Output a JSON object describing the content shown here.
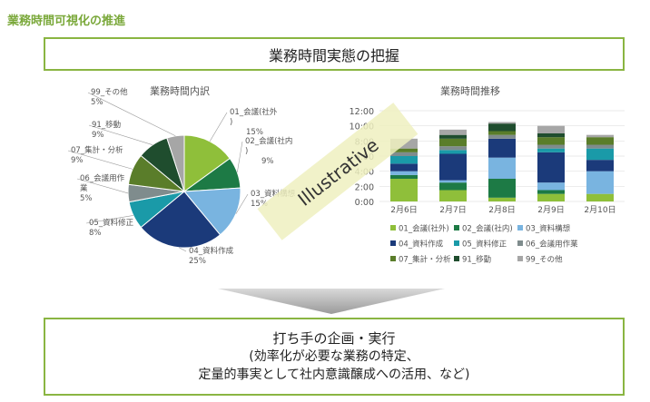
{
  "page_title": "業務時間可視化の推進",
  "top_box": "業務時間実態の把握",
  "watermark": "Illustrative",
  "bottom_box": {
    "line1": "打ち手の企画・実行",
    "line2": "(効率化が必要な業務の特定、",
    "line3": "定量的事実として社内意識醸成への活用、など)"
  },
  "colors": {
    "c1": "#8fbf3a",
    "c2": "#1d7a45",
    "c3": "#79b4e0",
    "c4": "#1b3a7a",
    "c5": "#1a9aa8",
    "c6": "#7f8c8d",
    "c7": "#5a7d2a",
    "c8": "#1f4d2e",
    "c9": "#a6a6a6"
  },
  "chart_data": [
    {
      "type": "pie",
      "title": "業務時間内訳",
      "categories": [
        "01_会議(社外)",
        "02_会議(社内)",
        "03_資料構想",
        "04_資料作成",
        "05_資料修正",
        "06_会議用作業",
        "07_集計・分析",
        "91_移動",
        "99_その他"
      ],
      "values": [
        15,
        9,
        15,
        25,
        8,
        5,
        9,
        9,
        5
      ],
      "labels": [
        [
          "01_会議(社外",
          ")",
          "15%"
        ],
        [
          "02_会議(社内",
          ")",
          "9%"
        ],
        [
          "03_資料構想",
          "15%"
        ],
        [
          "04_資料作成",
          "25%"
        ],
        [
          "05_資料修正",
          "8%"
        ],
        [
          "06_会議用作",
          "業",
          "5%"
        ],
        [
          "07_集計・分析",
          "9%"
        ],
        [
          "91_移動",
          "9%"
        ],
        [
          "99_その他",
          "5%"
        ]
      ]
    },
    {
      "type": "bar",
      "stacked": true,
      "title": "業務時間推移",
      "categories": [
        "2月6日",
        "2月7日",
        "2月8日",
        "2月9日",
        "2月10日"
      ],
      "ylim": [
        0,
        12
      ],
      "yticks": [
        "0:00",
        "2:00",
        "4:00",
        "6:00",
        "8:00",
        "10:00",
        "12:00"
      ],
      "grid": true,
      "legend_position": "bottom",
      "series": [
        {
          "name": "01_会議(社外)",
          "values": [
            3.0,
            1.5,
            0.5,
            1.0,
            1.0
          ]
        },
        {
          "name": "02_会議(社内)",
          "values": [
            0.5,
            1.0,
            2.5,
            0.5,
            0
          ]
        },
        {
          "name": "03_資料構想",
          "values": [
            0.5,
            0.3,
            2.8,
            1.0,
            3.0
          ]
        },
        {
          "name": "04_資料作成",
          "values": [
            1.0,
            3.5,
            2.5,
            4.0,
            1.5
          ]
        },
        {
          "name": "05_資料修正",
          "values": [
            1.0,
            0.5,
            0,
            0.5,
            1.5
          ]
        },
        {
          "name": "06_会議用作業",
          "values": [
            0.5,
            0.5,
            0.5,
            0.5,
            0.5
          ]
        },
        {
          "name": "07_集計・分析",
          "values": [
            0.5,
            1.0,
            0.5,
            1.0,
            1.0
          ]
        },
        {
          "name": "91_移動",
          "values": [
            0,
            0.5,
            1.0,
            0.5,
            0
          ]
        },
        {
          "name": "99_その他",
          "values": [
            1.3,
            0.7,
            0.2,
            1.0,
            0.3
          ]
        }
      ]
    }
  ]
}
